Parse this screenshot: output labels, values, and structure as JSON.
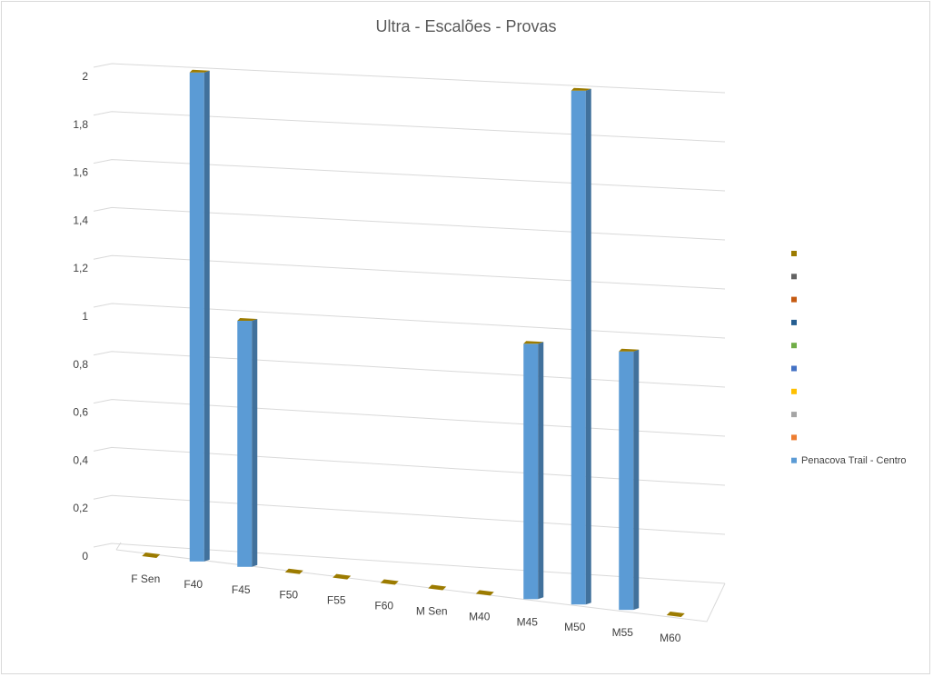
{
  "chart_data": {
    "type": "bar",
    "title": "Ultra - Escalões - Provas",
    "xlabel": "",
    "ylabel": "",
    "ylim": [
      0,
      2
    ],
    "y_ticks": [
      "0",
      "0,2",
      "0,4",
      "0,6",
      "0,8",
      "1",
      "1,2",
      "1,4",
      "1,6",
      "1,8",
      "2"
    ],
    "categories": [
      "F Sen",
      "F40",
      "F45",
      "F50",
      "F55",
      "F60",
      "M Sen",
      "M40",
      "M45",
      "M50",
      "M55",
      "M60"
    ],
    "series": [
      {
        "name": "Penacova Trail - Centro",
        "color": "#5b9bd5",
        "values": [
          0,
          2,
          1,
          0,
          0,
          0,
          0,
          0,
          1,
          2,
          1,
          0
        ]
      }
    ],
    "legend_swatches": [
      "#9c7b00",
      "#636363",
      "#c55a11",
      "#255e91",
      "#70ad47",
      "#4472c4",
      "#ffc000",
      "#a5a5a5",
      "#ed7d31",
      "#5b9bd5"
    ],
    "legend_placement": "right",
    "grid": true,
    "style": "3d-column"
  }
}
